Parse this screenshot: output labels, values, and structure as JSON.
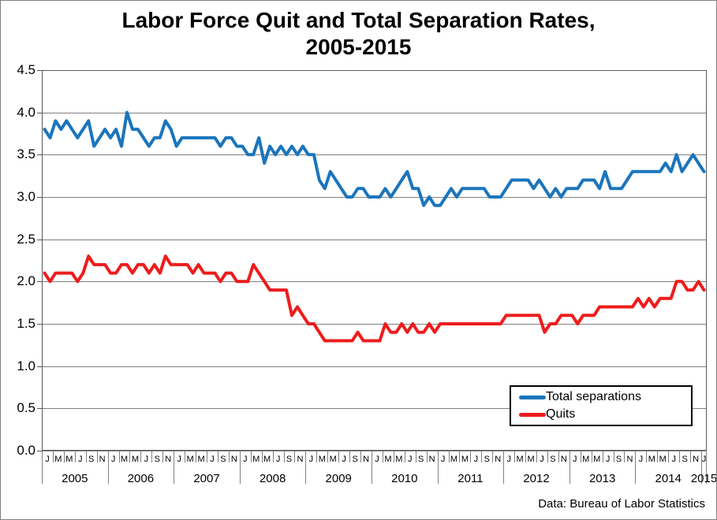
{
  "chart_data": {
    "type": "line",
    "title_line1": "Labor Force Quit and Total Separation Rates,",
    "title_line2": "2005-2015",
    "x_start": "Jan 2005",
    "x_end": "Jan 2015",
    "month_tick_labels": [
      "J",
      "M",
      "M",
      "J",
      "S",
      "N"
    ],
    "years": [
      "2005",
      "2006",
      "2007",
      "2008",
      "2009",
      "2010",
      "2011",
      "2012",
      "2013",
      "2014",
      "2015"
    ],
    "ylim": [
      0,
      4.5
    ],
    "ytick_step": 0.5,
    "y_tick_labels": [
      "0.0",
      "0.5",
      "1.0",
      "1.5",
      "2.0",
      "2.5",
      "3.0",
      "3.5",
      "4.0",
      "4.5"
    ],
    "grid": true,
    "gridline_color": "#808080",
    "axis_color": "#595959",
    "legend_position": "bottom-right",
    "source": "Data: Bureau of Labor Statistics",
    "series": [
      {
        "name": "Total separations",
        "color": "#1B75BC",
        "values": [
          3.8,
          3.7,
          3.9,
          3.8,
          3.9,
          3.8,
          3.7,
          3.8,
          3.9,
          3.6,
          3.7,
          3.8,
          3.7,
          3.8,
          3.6,
          4.0,
          3.8,
          3.8,
          3.7,
          3.6,
          3.7,
          3.7,
          3.9,
          3.8,
          3.6,
          3.7,
          3.7,
          3.7,
          3.7,
          3.7,
          3.7,
          3.7,
          3.6,
          3.7,
          3.7,
          3.6,
          3.6,
          3.5,
          3.5,
          3.7,
          3.4,
          3.6,
          3.5,
          3.6,
          3.5,
          3.6,
          3.5,
          3.6,
          3.5,
          3.5,
          3.2,
          3.1,
          3.3,
          3.2,
          3.1,
          3.0,
          3.0,
          3.1,
          3.1,
          3.0,
          3.0,
          3.0,
          3.1,
          3.0,
          3.1,
          3.2,
          3.3,
          3.1,
          3.1,
          2.9,
          3.0,
          2.9,
          2.9,
          3.0,
          3.1,
          3.0,
          3.1,
          3.1,
          3.1,
          3.1,
          3.1,
          3.0,
          3.0,
          3.0,
          3.1,
          3.2,
          3.2,
          3.2,
          3.2,
          3.1,
          3.2,
          3.1,
          3.0,
          3.1,
          3.0,
          3.1,
          3.1,
          3.1,
          3.2,
          3.2,
          3.2,
          3.1,
          3.3,
          3.1,
          3.1,
          3.1,
          3.2,
          3.3,
          3.3,
          3.3,
          3.3,
          3.3,
          3.3,
          3.4,
          3.3,
          3.5,
          3.3,
          3.4,
          3.5,
          3.4,
          3.3
        ]
      },
      {
        "name": "Quits",
        "color": "#EE1C1C",
        "values": [
          2.1,
          2.0,
          2.1,
          2.1,
          2.1,
          2.1,
          2.0,
          2.1,
          2.3,
          2.2,
          2.2,
          2.2,
          2.1,
          2.1,
          2.2,
          2.2,
          2.1,
          2.2,
          2.2,
          2.1,
          2.2,
          2.1,
          2.3,
          2.2,
          2.2,
          2.2,
          2.2,
          2.1,
          2.2,
          2.1,
          2.1,
          2.1,
          2.0,
          2.1,
          2.1,
          2.0,
          2.0,
          2.0,
          2.2,
          2.1,
          2.0,
          1.9,
          1.9,
          1.9,
          1.9,
          1.6,
          1.7,
          1.6,
          1.5,
          1.5,
          1.4,
          1.3,
          1.3,
          1.3,
          1.3,
          1.3,
          1.3,
          1.4,
          1.3,
          1.3,
          1.3,
          1.3,
          1.5,
          1.4,
          1.4,
          1.5,
          1.4,
          1.5,
          1.4,
          1.4,
          1.5,
          1.4,
          1.5,
          1.5,
          1.5,
          1.5,
          1.5,
          1.5,
          1.5,
          1.5,
          1.5,
          1.5,
          1.5,
          1.5,
          1.6,
          1.6,
          1.6,
          1.6,
          1.6,
          1.6,
          1.6,
          1.4,
          1.5,
          1.5,
          1.6,
          1.6,
          1.6,
          1.5,
          1.6,
          1.6,
          1.6,
          1.7,
          1.7,
          1.7,
          1.7,
          1.7,
          1.7,
          1.7,
          1.8,
          1.7,
          1.8,
          1.7,
          1.8,
          1.8,
          1.8,
          2.0,
          2.0,
          1.9,
          1.9,
          2.0,
          1.9
        ]
      }
    ]
  }
}
